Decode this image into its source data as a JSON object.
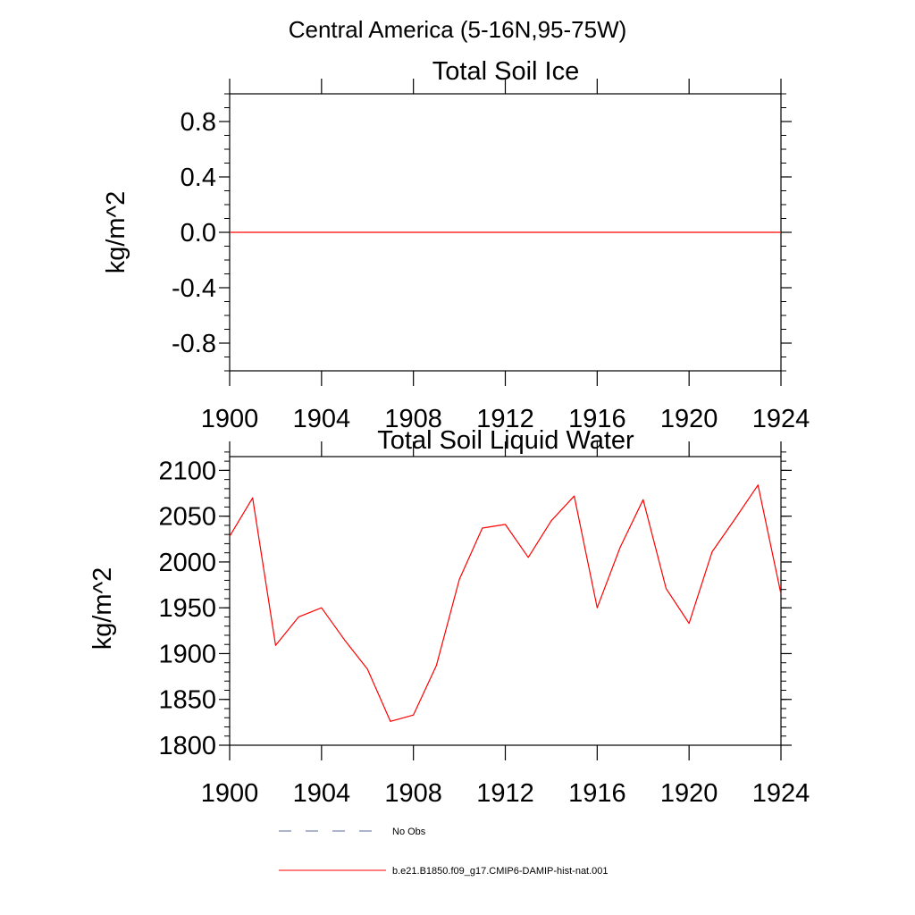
{
  "figure": {
    "main_title": "Central America (5-16N,95-75W)"
  },
  "legend": {
    "items": [
      {
        "label": "No Obs",
        "style": "dashed",
        "color": "#5a6b9a"
      },
      {
        "label": "b.e21.B1850.f09_g17.CMIP6-DAMIP-hist-nat.001",
        "style": "solid",
        "color": "#ff0000"
      }
    ]
  },
  "chart_data": [
    {
      "type": "line",
      "title": "Total Soil Ice",
      "xlabel": "",
      "ylabel": "kg/m^2",
      "xlim": [
        1900,
        1924
      ],
      "ylim": [
        -1.0,
        1.0
      ],
      "xticks": [
        1900,
        1904,
        1908,
        1912,
        1916,
        1920,
        1924
      ],
      "yticks": [
        -0.8,
        -0.4,
        0.0,
        0.4,
        0.8
      ],
      "ytick_labels": [
        "-0.8",
        "-0.4",
        "0.0",
        "0.4",
        "0.8"
      ],
      "yminor_step": 0.1,
      "grid": false,
      "series": [
        {
          "color": "#ff0000",
          "x": [
            1900,
            1901,
            1902,
            1903,
            1904,
            1905,
            1906,
            1907,
            1908,
            1909,
            1910,
            1911,
            1912,
            1913,
            1914,
            1915,
            1916,
            1917,
            1918,
            1919,
            1920,
            1921,
            1922,
            1923,
            1924
          ],
          "y": [
            0,
            0,
            0,
            0,
            0,
            0,
            0,
            0,
            0,
            0,
            0,
            0,
            0,
            0,
            0,
            0,
            0,
            0,
            0,
            0,
            0,
            0,
            0,
            0,
            0
          ]
        }
      ]
    },
    {
      "type": "line",
      "title": "Total Soil Liquid Water",
      "xlabel": "",
      "ylabel": "kg/m^2",
      "xlim": [
        1900,
        1924
      ],
      "ylim": [
        1800,
        2115
      ],
      "xticks": [
        1900,
        1904,
        1908,
        1912,
        1916,
        1920,
        1924
      ],
      "yticks": [
        1800,
        1850,
        1900,
        1950,
        2000,
        2050,
        2100
      ],
      "ytick_labels": [
        "1800",
        "1850",
        "1900",
        "1950",
        "2000",
        "2050",
        "2100"
      ],
      "yminor_step": 10,
      "grid": false,
      "series": [
        {
          "color": "#ff0000",
          "x": [
            1900,
            1901,
            1902,
            1903,
            1904,
            1905,
            1906,
            1907,
            1908,
            1909,
            1910,
            1911,
            1912,
            1913,
            1914,
            1915,
            1916,
            1917,
            1918,
            1919,
            1920,
            1921,
            1922,
            1923,
            1924
          ],
          "y": [
            2028,
            2070,
            1909,
            1940,
            1950,
            1915,
            1883,
            1826,
            1833,
            1887,
            1981,
            2037,
            2041,
            2005,
            2045,
            2072,
            1950,
            2016,
            2068,
            1971,
            1933,
            2011,
            2047,
            2084,
            1965
          ]
        }
      ]
    }
  ]
}
